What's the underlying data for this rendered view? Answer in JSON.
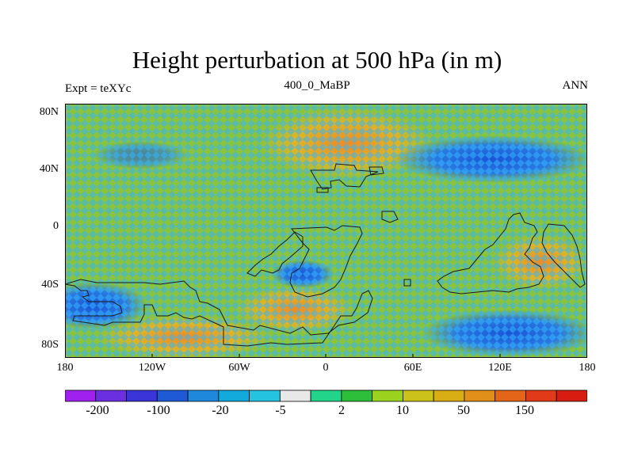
{
  "title": "Height perturbation at 500 hPa (in m)",
  "subtitle_left": "Expt = teXYc",
  "subtitle_center": "400_0_MaBP",
  "subtitle_right": "ANN",
  "y_ticks": [
    "80N",
    "40N",
    "0",
    "40S",
    "80S"
  ],
  "x_ticks": [
    "180",
    "120W",
    "60W",
    "0",
    "60E",
    "120E",
    "180"
  ],
  "colorbar": {
    "labels": [
      "-200",
      "-100",
      "-20",
      "-5",
      "2",
      "10",
      "50",
      "150"
    ],
    "colors": [
      "#a020f0",
      "#6a2fe0",
      "#3b34d8",
      "#1f5ad6",
      "#1e88dc",
      "#12a9dc",
      "#24c4e0",
      "#e8e8e8",
      "#22d48a",
      "#2dbf3a",
      "#9ad21e",
      "#cbc31a",
      "#d9ae12",
      "#e08f18",
      "#e46418",
      "#e03a18",
      "#d81c10"
    ]
  },
  "map_fields": {
    "background_color": "#8ac43a",
    "positive_anomaly_color": "#e8a020",
    "negative_anomaly_color": "#1f64d8"
  }
}
